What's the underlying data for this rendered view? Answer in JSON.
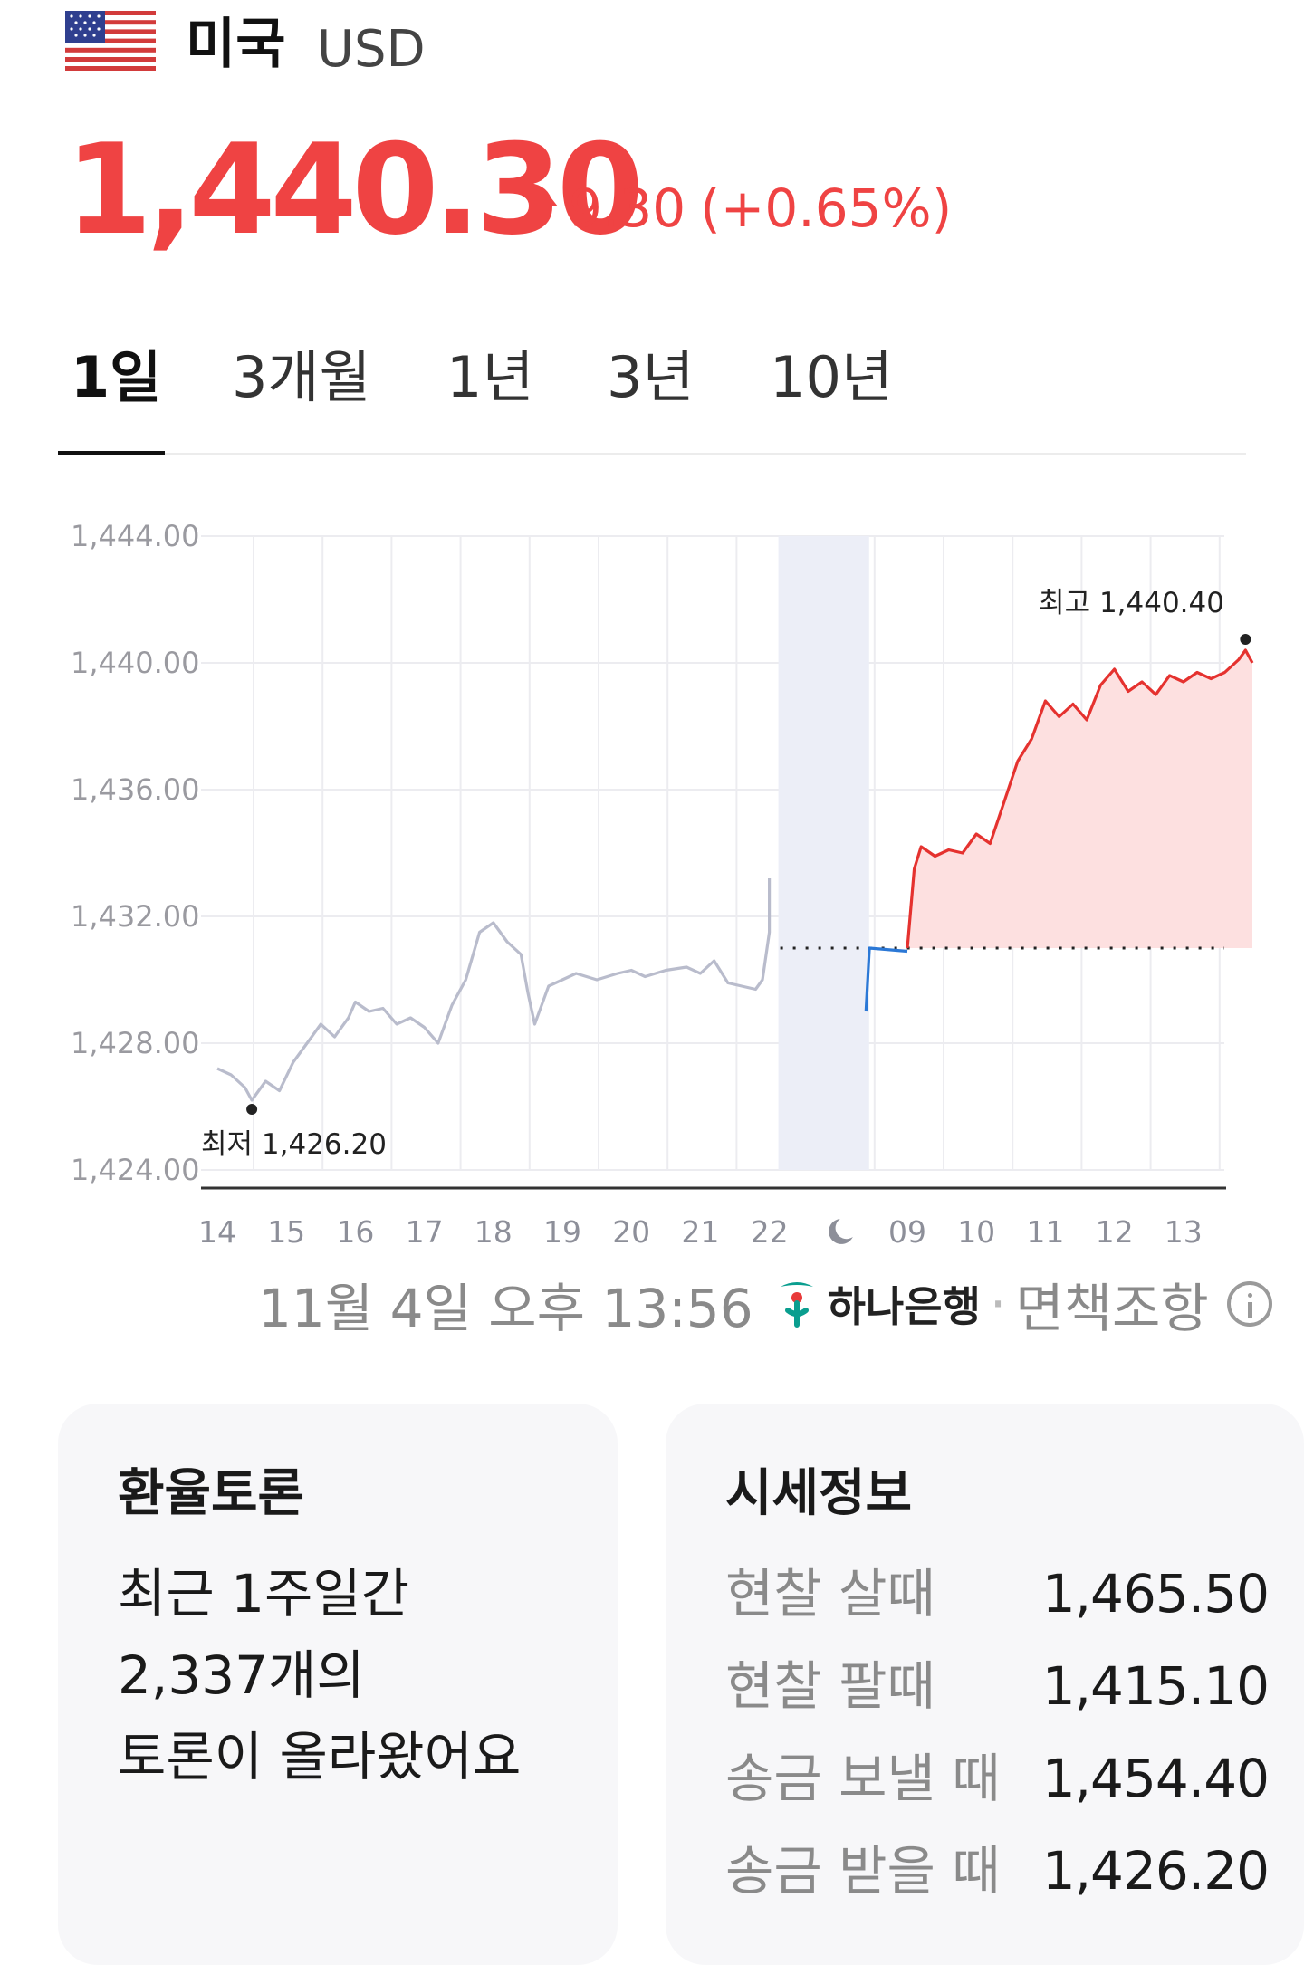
{
  "header": {
    "flag_icon": "us-flag-icon",
    "country": "미국",
    "currency_code": "USD",
    "price": "1,440.30",
    "change_abs": "9.30",
    "change_pct": "(+0.65%)",
    "direction": "up",
    "up_color": "#ef4343"
  },
  "tabs": [
    {
      "label": "1일",
      "active": true
    },
    {
      "label": "3개월",
      "active": false
    },
    {
      "label": "1년",
      "active": false
    },
    {
      "label": "3년",
      "active": false
    },
    {
      "label": "10년",
      "active": false
    }
  ],
  "chart_data": {
    "type": "line",
    "ylim": [
      1424,
      1444
    ],
    "y_ticks": [
      "1,444.00",
      "1,440.00",
      "1,436.00",
      "1,432.00",
      "1,428.00",
      "1,424.00"
    ],
    "x_ticks": [
      "14",
      "15",
      "16",
      "17",
      "18",
      "19",
      "20",
      "21",
      "22",
      "09",
      "10",
      "11",
      "12",
      "13"
    ],
    "night_icon": "moon-icon",
    "previous_close": 1431.0,
    "low_label": "최저 1,426.20",
    "high_label": "최고 1,440.40",
    "low_value": 1426.2,
    "high_value": 1440.4,
    "series": [
      {
        "segment": "previous_day",
        "color": "#b9bccc",
        "points": [
          [
            14.0,
            1427.2
          ],
          [
            14.2,
            1427.0
          ],
          [
            14.4,
            1426.6
          ],
          [
            14.5,
            1426.2
          ],
          [
            14.7,
            1426.8
          ],
          [
            14.9,
            1426.5
          ],
          [
            15.1,
            1427.4
          ],
          [
            15.3,
            1428.0
          ],
          [
            15.5,
            1428.6
          ],
          [
            15.7,
            1428.2
          ],
          [
            15.9,
            1428.8
          ],
          [
            16.0,
            1429.3
          ],
          [
            16.2,
            1429.0
          ],
          [
            16.4,
            1429.1
          ],
          [
            16.6,
            1428.6
          ],
          [
            16.8,
            1428.8
          ],
          [
            17.0,
            1428.5
          ],
          [
            17.2,
            1428.0
          ],
          [
            17.4,
            1429.2
          ],
          [
            17.6,
            1430.0
          ],
          [
            17.8,
            1431.5
          ],
          [
            18.0,
            1431.8
          ],
          [
            18.2,
            1431.2
          ],
          [
            18.4,
            1430.8
          ],
          [
            18.5,
            1429.6
          ],
          [
            18.6,
            1428.6
          ],
          [
            18.8,
            1429.8
          ],
          [
            19.0,
            1430.0
          ],
          [
            19.2,
            1430.2
          ],
          [
            19.5,
            1430.0
          ],
          [
            19.8,
            1430.2
          ],
          [
            20.0,
            1430.3
          ],
          [
            20.2,
            1430.1
          ],
          [
            20.5,
            1430.3
          ],
          [
            20.8,
            1430.4
          ],
          [
            21.0,
            1430.2
          ],
          [
            21.2,
            1430.6
          ],
          [
            21.4,
            1429.9
          ],
          [
            21.6,
            1429.8
          ],
          [
            21.8,
            1429.7
          ],
          [
            21.9,
            1430.0
          ],
          [
            22.0,
            1431.5
          ],
          [
            22.0,
            1433.2
          ]
        ]
      },
      {
        "segment": "overnight",
        "color": "#2b78d6",
        "points": [
          [
            23.4,
            1429.0
          ],
          [
            23.45,
            1431.0
          ],
          [
            24.0,
            1430.9
          ]
        ]
      },
      {
        "segment": "today",
        "color": "#e5322f",
        "points": [
          [
            24.0,
            1431.0
          ],
          [
            24.1,
            1433.5
          ],
          [
            24.2,
            1434.2
          ],
          [
            24.4,
            1433.9
          ],
          [
            24.6,
            1434.1
          ],
          [
            24.8,
            1434.0
          ],
          [
            25.0,
            1434.6
          ],
          [
            25.2,
            1434.3
          ],
          [
            25.4,
            1435.6
          ],
          [
            25.6,
            1436.9
          ],
          [
            25.8,
            1437.6
          ],
          [
            26.0,
            1438.8
          ],
          [
            26.2,
            1438.3
          ],
          [
            26.4,
            1438.7
          ],
          [
            26.6,
            1438.2
          ],
          [
            26.8,
            1439.3
          ],
          [
            27.0,
            1439.8
          ],
          [
            27.2,
            1439.1
          ],
          [
            27.4,
            1439.4
          ],
          [
            27.6,
            1439.0
          ],
          [
            27.8,
            1439.6
          ],
          [
            28.0,
            1439.4
          ],
          [
            28.2,
            1439.7
          ],
          [
            28.4,
            1439.5
          ],
          [
            28.6,
            1439.7
          ],
          [
            28.8,
            1440.1
          ],
          [
            28.9,
            1440.4
          ],
          [
            29.0,
            1440.0
          ]
        ]
      }
    ]
  },
  "source": {
    "timestamp": "11월 4일 오후 13:56",
    "bank_logo": "hana-bank-logo-icon",
    "bank": "하나은행",
    "separator": "·",
    "disclaimer": "면책조항",
    "info_icon": "info-icon"
  },
  "discussion": {
    "title": "환율토론",
    "lines": [
      "최근 1주일간",
      "2,337개의",
      "토론이 올라왔어요"
    ]
  },
  "quote": {
    "title": "시세정보",
    "rows": [
      {
        "label": "현찰 살때",
        "value": "1,465.50"
      },
      {
        "label": "현찰 팔때",
        "value": "1,415.10"
      },
      {
        "label": "송금 보낼 때",
        "value": "1,454.40"
      },
      {
        "label": "송금 받을 때",
        "value": "1,426.20"
      }
    ]
  }
}
